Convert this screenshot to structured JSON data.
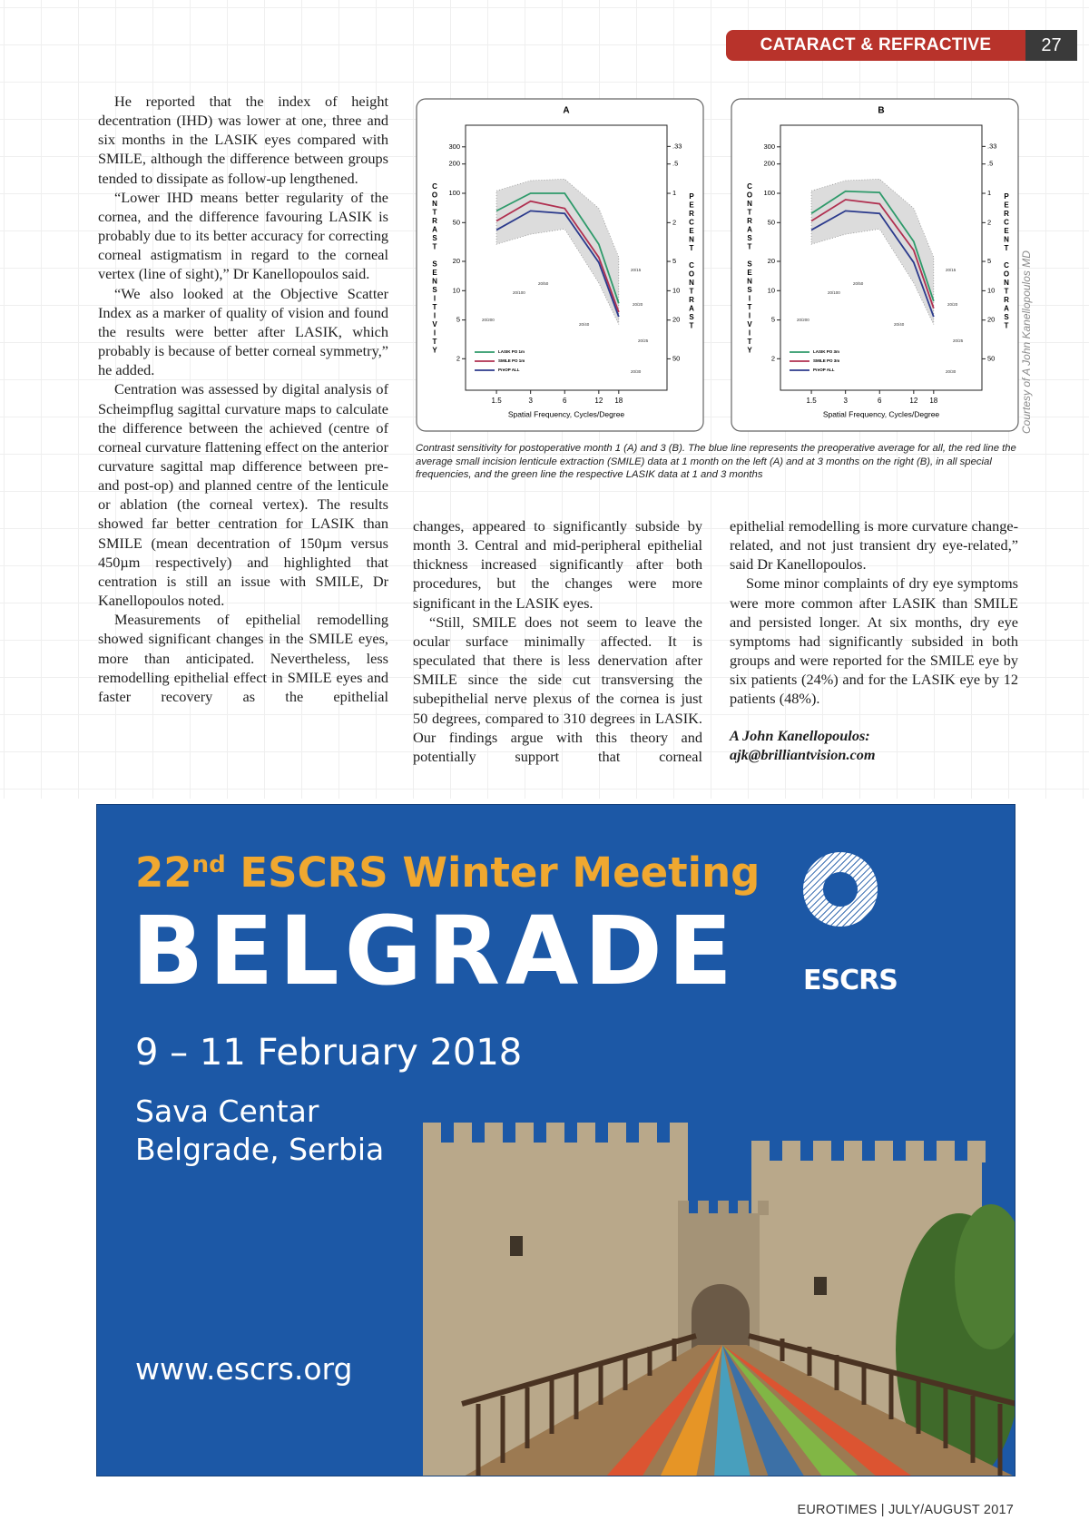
{
  "header": {
    "section": "CATARACT & REFRACTIVE",
    "page": "27"
  },
  "columns": {
    "left": [
      "He reported that the index of height decentration (IHD) was lower at one, three and six months in the LASIK eyes compared with SMILE, although the difference between groups tended to dissipate as follow-up lengthened.",
      "“Lower IHD means better regularity of the cornea, and the difference favouring LASIK is probably due to its better accuracy for correcting corneal astigmatism in regard to the corneal vertex (line of sight),” Dr Kanellopoulos said.",
      "“We also looked at the Objective Scatter Index as a marker of quality of vision and found the results were better after LASIK, which probably is because of better corneal symmetry,” he added.",
      "Centration was assessed by digital analysis of Scheimpflug sagittal curvature maps to calculate the difference between the achieved (centre of corneal curvature flattening effect on the anterior curvature sagittal map difference between pre- and post-op) and planned centre of the lenticule or ablation (the corneal vertex). The results showed far better centration for LASIK than SMILE (mean decentration of 150µm versus 450µm respectively) and highlighted that centration is still an issue with SMILE, Dr Kanellopoulos noted.",
      "Measurements of epithelial remodelling showed significant changes in the SMILE eyes, more than anticipated. Nevertheless, less remodelling epithelial effect in SMILE eyes and faster recovery as the epithelial"
    ],
    "middle": [
      "changes, appeared to significantly subside by month 3. Central and mid-peripheral epithelial thickness increased significantly after both procedures, but the changes were more significant in the LASIK eyes.",
      "“Still, SMILE does not seem to leave the ocular surface minimally affected. It is speculated that there is less denervation after SMILE since the side cut transversing the subepithelial nerve plexus of the cornea is just 50 degrees, compared to 310 degrees in LASIK. Our findings argue with this theory and potentially support that corneal"
    ],
    "right": [
      "epithelial remodelling is more curvature change-related, and not just transient dry eye-related,” said Dr Kanellopoulos.",
      "Some minor complaints of dry eye symptoms were more common after LASIK than SMILE and persisted longer. At six months, dry eye symptoms had significantly subsided in both groups and were reported for the SMILE eye by six patients (24%) and for the LASIK eye by 12 patients (48%)."
    ]
  },
  "signature": {
    "name": "A John Kanellopoulos:",
    "email": "ajk@brilliantvision.com"
  },
  "figure": {
    "charts": [
      {
        "type": "line",
        "title": "A",
        "x_label": "Spatial Frequency, Cycles/Degree",
        "y_label": "CONTRAST SENSITIVITY",
        "y2_label": "PERCENT CONTRAST",
        "x": [
          1.5,
          3,
          6,
          12,
          18
        ],
        "xlim": [
          0.8,
          48
        ],
        "xticks": [
          1.5,
          3,
          6,
          12,
          18
        ],
        "xlog": true,
        "ylim": [
          0.95,
          500
        ],
        "yticks": [
          2,
          5,
          10,
          20,
          50,
          100,
          200,
          300
        ],
        "ylog": true,
        "y2lim": [
          105,
          0.2
        ],
        "y2ticks": [
          {
            "value": 0.33,
            "label": ".33"
          },
          {
            "value": 0.5,
            "label": ".5"
          },
          1,
          2,
          5,
          10,
          20,
          50
        ],
        "band": {
          "lower": [
            30,
            38,
            43,
            12,
            4.5
          ],
          "upper": [
            106,
            135,
            140,
            70,
            22
          ]
        },
        "acuity_labels": [
          "20/200",
          "20/100",
          "20/50",
          "20/40",
          "20/15",
          "20/20",
          "20/25",
          "20/30"
        ],
        "series": [
          {
            "name": "LASIK PO 1m",
            "color": "#2e9a6a",
            "values": [
              66,
              100,
              100,
              30,
              7.4
            ]
          },
          {
            "name": "SMILE PO 1m",
            "color": "#b03050",
            "values": [
              52,
              83,
              70,
              22,
              6
            ]
          },
          {
            "name": "PreOP ALL",
            "color": "#2b3a8c",
            "values": [
              42,
              66,
              62,
              19.5,
              5.4
            ]
          }
        ]
      },
      {
        "type": "line",
        "title": "B",
        "x_label": "Spatial Frequency, Cycles/Degree",
        "y_label": "CONTRAST SENSITIVITY",
        "y2_label": "PERCENT CONTRAST",
        "x": [
          1.5,
          3,
          6,
          12,
          18
        ],
        "xlim": [
          0.8,
          48
        ],
        "xticks": [
          1.5,
          3,
          6,
          12,
          18
        ],
        "xlog": true,
        "ylim": [
          0.95,
          500
        ],
        "yticks": [
          2,
          5,
          10,
          20,
          50,
          100,
          200,
          300
        ],
        "ylog": true,
        "y2lim": [
          105,
          0.2
        ],
        "y2ticks": [
          {
            "value": 0.33,
            "label": ".33"
          },
          {
            "value": 0.5,
            "label": ".5"
          },
          1,
          2,
          5,
          10,
          20,
          50
        ],
        "band": {
          "lower": [
            30,
            38,
            43,
            12,
            4.5
          ],
          "upper": [
            106,
            135,
            140,
            70,
            22
          ]
        },
        "acuity_labels": [
          "20/200",
          "20/100",
          "20/50",
          "20/40",
          "20/15",
          "20/20",
          "20/25",
          "20/30"
        ],
        "series": [
          {
            "name": "LASIK PO 3m",
            "color": "#2e9a6a",
            "values": [
              62,
              105,
              102,
              32,
              7.8
            ]
          },
          {
            "name": "SMILE PO 3m",
            "color": "#b03050",
            "values": [
              52,
              86,
              78,
              26,
              6.6
            ]
          },
          {
            "name": "PreOP ALL",
            "color": "#2b3a8c",
            "values": [
              42,
              66,
              62,
              19.5,
              5.4
            ]
          }
        ]
      }
    ],
    "caption": "Contrast sensitivity for postoperative month 1 (A) and 3 (B). The blue line represents the preoperative average for all, the red line the average small incision lenticule extraction (SMILE) data at 1 month on the left (A) and at 3 months on the right (B), in all special frequencies, and the green line the respective LASIK data at 1 and 3 months",
    "credit": "Courtesy of A John Kanellopoulos MD"
  },
  "advert": {
    "title": [
      "22",
      "nd",
      "ESCRS Winter Meeting"
    ],
    "city": "BELGRADE",
    "dates": "9 – 11 February 2018",
    "venue": [
      "Sava Centar",
      "Belgrade, Serbia"
    ],
    "url": "www.escrs.org",
    "logo_text": "ESCRS"
  },
  "footer": "EUROTIMES | JULY/AUGUST 2017"
}
